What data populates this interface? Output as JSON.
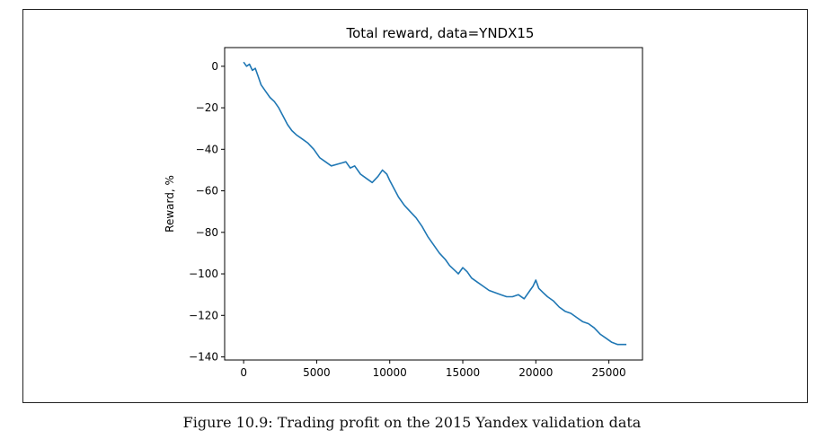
{
  "figure": {
    "caption": "Figure 10.9: Trading profit on the 2015 Yandex validation data"
  },
  "chart_data": {
    "type": "line",
    "title": "Total reward, data=YNDX15",
    "xlabel": "",
    "ylabel": "Reward, %",
    "xlim": [
      -1300,
      27300
    ],
    "ylim": [
      -141.5,
      9
    ],
    "xticks": [
      0,
      5000,
      10000,
      15000,
      20000,
      25000
    ],
    "xtick_labels": [
      "0",
      "5000",
      "10000",
      "15000",
      "20000",
      "25000"
    ],
    "yticks": [
      0,
      -20,
      -40,
      -60,
      -80,
      -100,
      -120,
      -140
    ],
    "ytick_labels": [
      "0",
      "−20",
      "−40",
      "−60",
      "−80",
      "−100",
      "−120",
      "−140"
    ],
    "grid": false,
    "line_color": "#1f77b4",
    "series": [
      {
        "x": [
          0,
          200,
          400,
          600,
          800,
          1000,
          1200,
          1500,
          1800,
          2100,
          2400,
          2700,
          3000,
          3300,
          3600,
          4000,
          4400,
          4800,
          5200,
          5600,
          6000,
          6500,
          7000,
          7300,
          7600,
          8000,
          8400,
          8800,
          9200,
          9500,
          9800,
          10000,
          10300,
          10600,
          11000,
          11400,
          11800,
          12200,
          12600,
          13000,
          13400,
          13800,
          14100,
          14400,
          14700,
          15000,
          15300,
          15600,
          16000,
          16400,
          16800,
          17200,
          17600,
          18000,
          18400,
          18800,
          19200,
          19600,
          19800,
          20000,
          20200,
          20500,
          20800,
          21200,
          21600,
          22000,
          22400,
          22800,
          23200,
          23600,
          24000,
          24400,
          24800,
          25200,
          25600,
          26000,
          26200
        ],
        "y": [
          2,
          0,
          1,
          -2,
          -1,
          -5,
          -9,
          -12,
          -15,
          -17,
          -20,
          -24,
          -28,
          -31,
          -33,
          -35,
          -37,
          -40,
          -44,
          -46,
          -48,
          -47,
          -46,
          -49,
          -48,
          -52,
          -54,
          -56,
          -53,
          -50,
          -52,
          -55,
          -59,
          -63,
          -67,
          -70,
          -73,
          -77,
          -82,
          -86,
          -90,
          -93,
          -96,
          -98,
          -100,
          -97,
          -99,
          -102,
          -104,
          -106,
          -108,
          -109,
          -110,
          -111,
          -111,
          -110,
          -112,
          -108,
          -106,
          -103,
          -107,
          -109,
          -111,
          -113,
          -116,
          -118,
          -119,
          -121,
          -123,
          -124,
          -126,
          -129,
          -131,
          -133,
          -134,
          -134,
          -134
        ]
      }
    ]
  }
}
